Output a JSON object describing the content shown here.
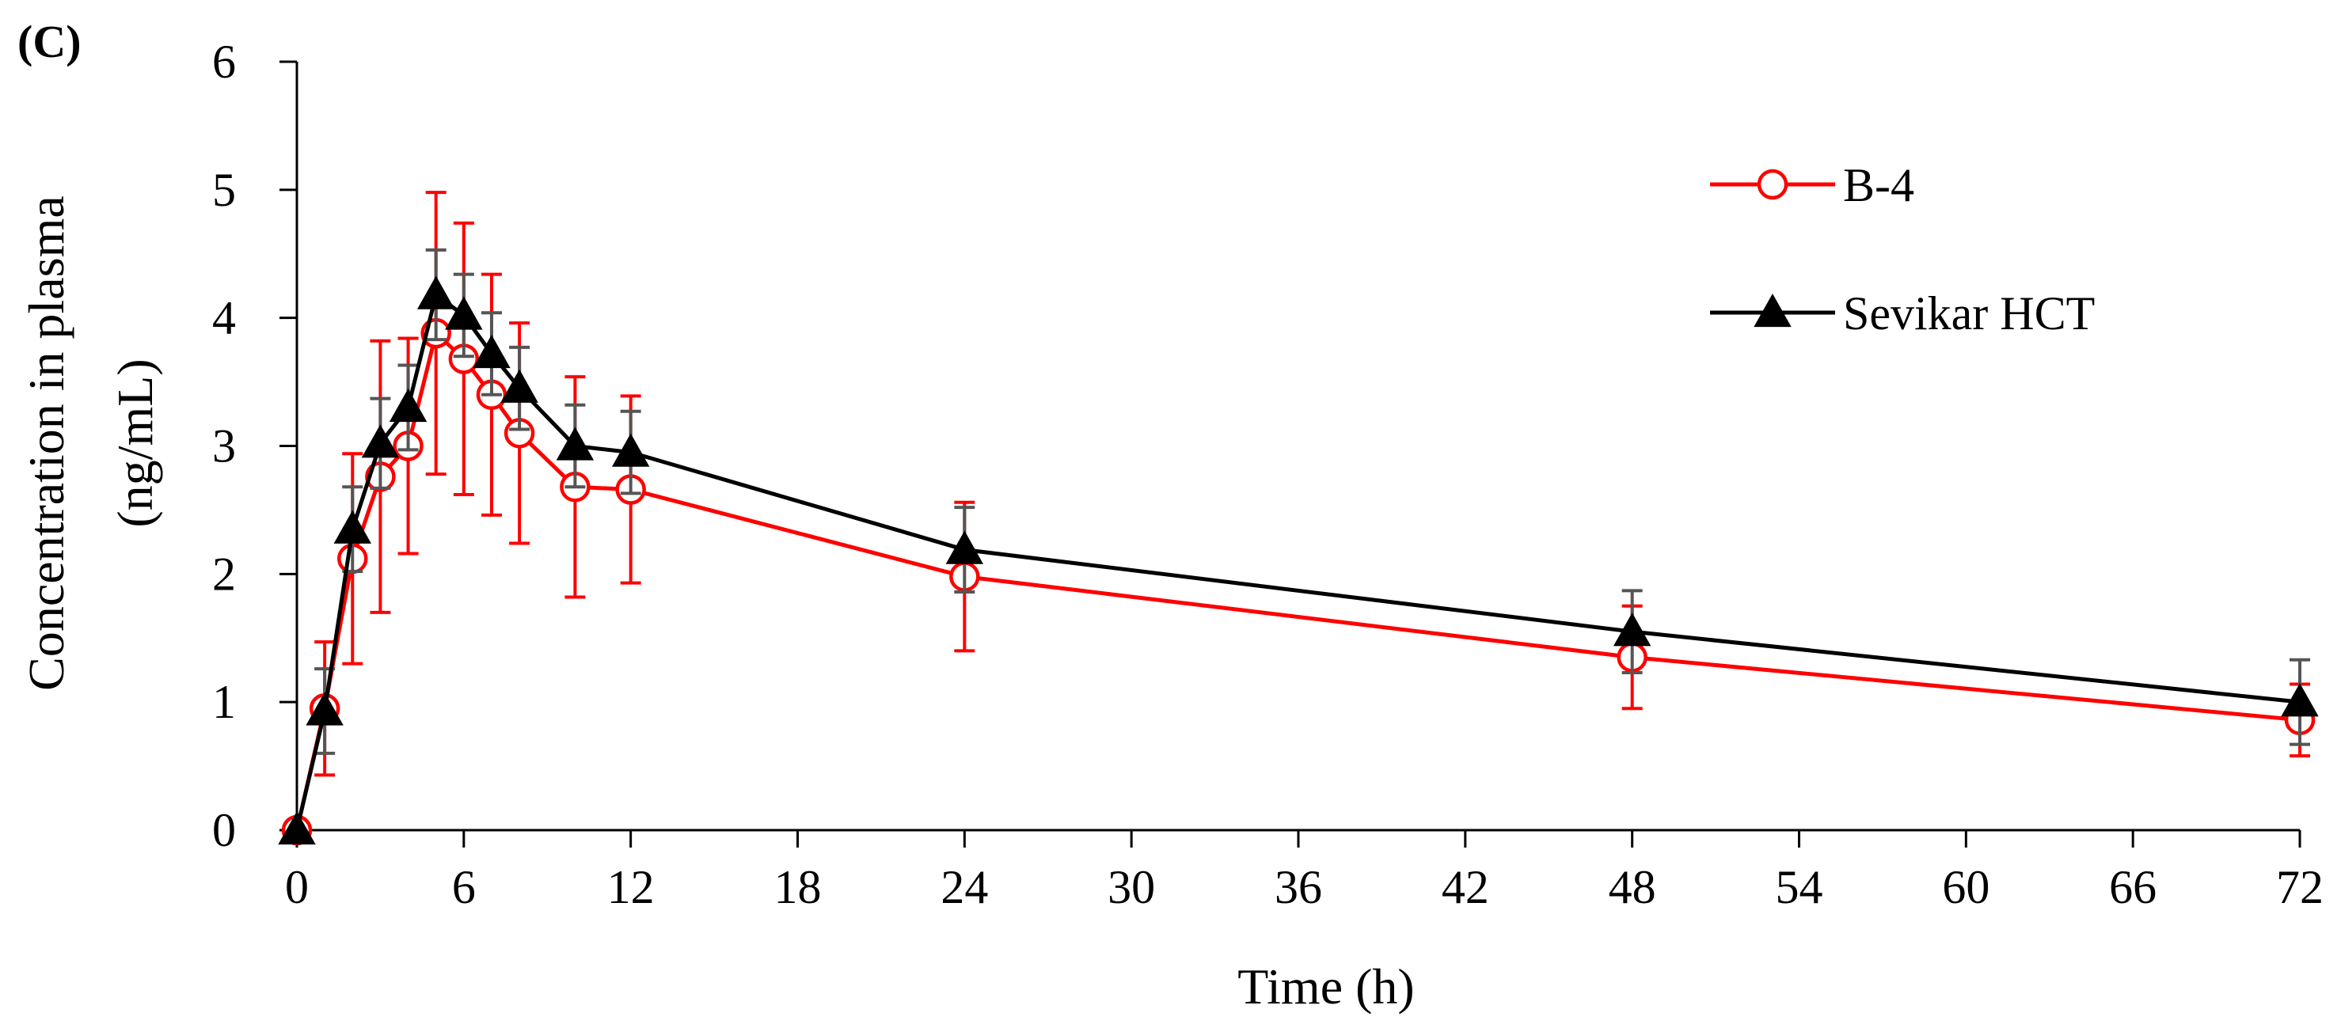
{
  "chart_data": {
    "type": "line",
    "panel_label": "(C)",
    "title": "",
    "xlabel": "Time (h)",
    "ylabel_line1": "Concentration in plasma",
    "ylabel_line2": "(ng/mL)",
    "xlim": [
      0,
      72
    ],
    "ylim": [
      0,
      6
    ],
    "xticks": [
      0,
      6,
      12,
      18,
      24,
      30,
      36,
      42,
      48,
      54,
      60,
      66,
      72
    ],
    "yticks": [
      0,
      1,
      2,
      3,
      4,
      5,
      6
    ],
    "grid": false,
    "legend_position": "top-right",
    "series": [
      {
        "name": "B-4",
        "color": "#ff0000",
        "error_color": "#ff0000",
        "marker": "open-circle",
        "x": [
          0,
          1,
          2,
          3,
          4,
          5,
          6,
          7,
          8,
          10,
          12,
          24,
          48,
          72
        ],
        "y": [
          0,
          0.95,
          2.12,
          2.76,
          3.0,
          3.88,
          3.68,
          3.4,
          3.1,
          2.68,
          2.66,
          1.98,
          1.35,
          0.86
        ],
        "error": [
          0,
          0.52,
          0.82,
          1.06,
          0.84,
          1.1,
          1.06,
          0.94,
          0.86,
          0.86,
          0.73,
          0.58,
          0.4,
          0.28
        ]
      },
      {
        "name": "Sevikar HCT",
        "color": "#000000",
        "error_color": "#555555",
        "marker": "filled-triangle",
        "x": [
          0,
          1,
          2,
          3,
          4,
          5,
          6,
          7,
          8,
          10,
          12,
          24,
          48,
          72
        ],
        "y": [
          0,
          0.93,
          2.35,
          3.02,
          3.3,
          4.18,
          4.02,
          3.72,
          3.45,
          3.0,
          2.95,
          2.19,
          1.55,
          1.0
        ],
        "error": [
          0,
          0.33,
          0.33,
          0.35,
          0.33,
          0.35,
          0.32,
          0.32,
          0.32,
          0.32,
          0.32,
          0.33,
          0.32,
          0.33
        ]
      }
    ]
  }
}
